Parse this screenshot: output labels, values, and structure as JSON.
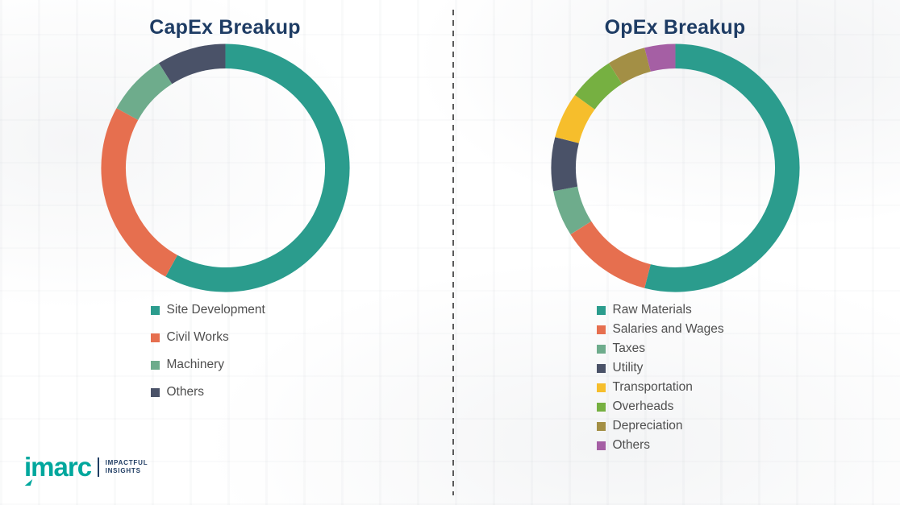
{
  "theme": {
    "title_color": "#1E3C64",
    "legend_text_color": "#4F4F4F",
    "divider_color": "#5A5A5A",
    "background_color": "#FFFFFF",
    "logo_color": "#00A79D",
    "tagline_color": "#1F3C63"
  },
  "brand": {
    "logo_text": "imarc",
    "tagline_line1": "IMPACTFUL",
    "tagline_line2": "INSIGHTS"
  },
  "chart_data": [
    {
      "type": "pie",
      "donut": true,
      "title": "CapEx Breakup",
      "labels": [
        "Site Development",
        "Civil Works",
        "Machinery",
        "Others"
      ],
      "values": [
        58,
        25,
        8,
        9
      ],
      "colors": [
        "#2B9C8D",
        "#E66F4F",
        "#6EAC8C",
        "#4A5268"
      ],
      "start_angle_deg": 0,
      "direction": "clockwise",
      "legend_position": "below"
    },
    {
      "type": "pie",
      "donut": true,
      "title": "OpEx Breakup",
      "labels": [
        "Raw Materials",
        "Salaries and Wages",
        "Taxes",
        "Utility",
        "Transportation",
        "Overheads",
        "Depreciation",
        "Others"
      ],
      "values": [
        54,
        12,
        6,
        7,
        6,
        6,
        5,
        4
      ],
      "colors": [
        "#2B9C8D",
        "#E66F4F",
        "#6EAC8C",
        "#4A5268",
        "#F6BE2C",
        "#76B041",
        "#A38F45",
        "#A55FA4"
      ],
      "start_angle_deg": 0,
      "direction": "clockwise",
      "legend_position": "below"
    }
  ]
}
